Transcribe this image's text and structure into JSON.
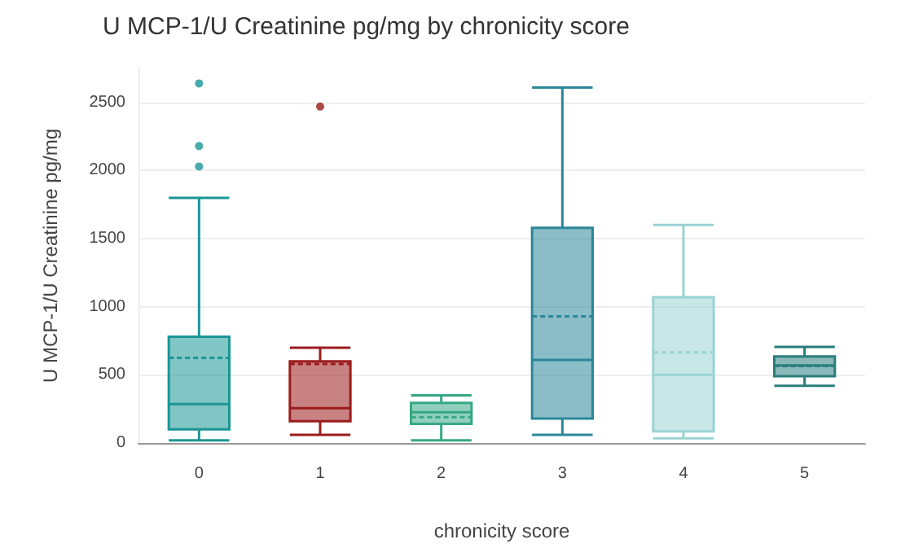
{
  "chart_data": {
    "type": "box",
    "title": "U MCP-1/U Creatinine pg/mg by chronicity score",
    "xlabel": "chronicity score",
    "ylabel": "U MCP-1/U Creatinine pg/mg",
    "categories": [
      "0",
      "1",
      "2",
      "3",
      "4",
      "5"
    ],
    "colors": [
      "#1a9696",
      "#9b1c1c",
      "#35a884",
      "#2a8799",
      "#9bd3d3",
      "#2a7d7d"
    ],
    "boxes": [
      {
        "low": 20,
        "q1": 100,
        "median": 285,
        "q3": 780,
        "high": 1800,
        "mean": 625,
        "outliers": [
          2640,
          2180,
          2030
        ]
      },
      {
        "low": 60,
        "q1": 160,
        "median": 255,
        "q3": 600,
        "high": 700,
        "mean": 580,
        "outliers": [
          2470
        ]
      },
      {
        "low": 20,
        "q1": 140,
        "median": 225,
        "q3": 295,
        "high": 350,
        "mean": 190
      },
      {
        "low": 60,
        "q1": 180,
        "median": 610,
        "q3": 1580,
        "high": 2610,
        "mean": 930
      },
      {
        "low": 35,
        "q1": 85,
        "median": 500,
        "q3": 1070,
        "high": 1600,
        "mean": 665
      },
      {
        "low": 420,
        "q1": 490,
        "median": 570,
        "q3": 635,
        "high": 705,
        "mean": 565
      }
    ],
    "ylim": [
      0,
      2750
    ],
    "yticks": [
      0,
      500,
      1000,
      1500,
      2000,
      2500
    ],
    "grid": "y"
  }
}
